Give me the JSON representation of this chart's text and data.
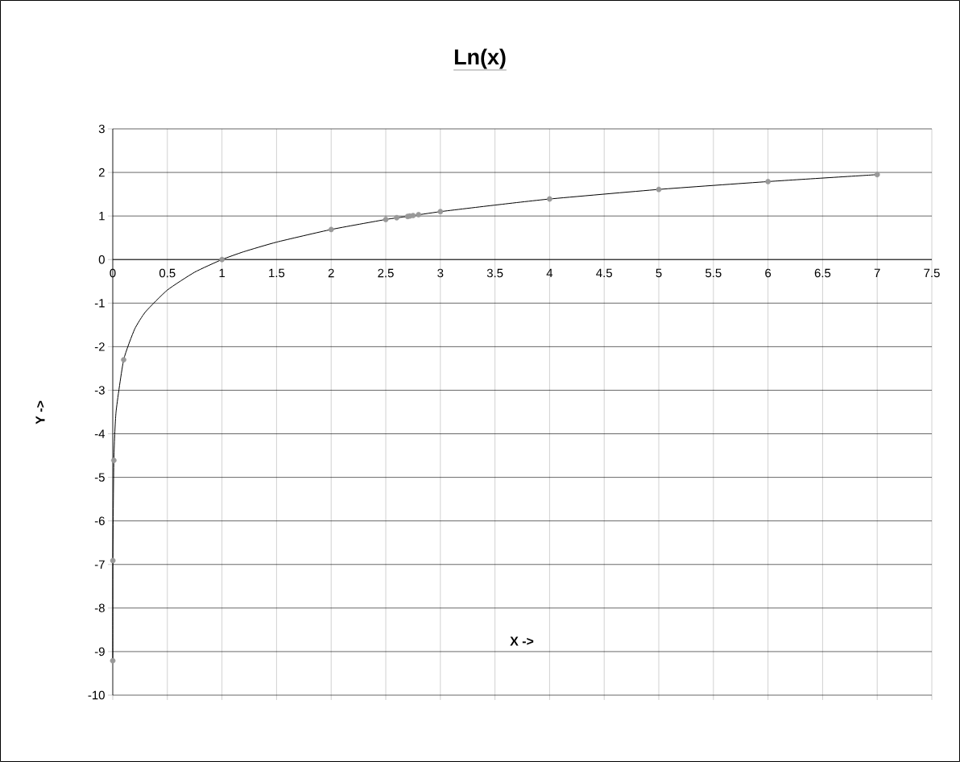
{
  "chart_data": {
    "type": "line",
    "title": "Ln(x)",
    "xlabel": "X ->",
    "ylabel": "Y ->",
    "xlim": [
      0,
      7.5
    ],
    "xticks": [
      0,
      0.5,
      1,
      1.5,
      2,
      2.5,
      3,
      3.5,
      4,
      4.5,
      5,
      5.5,
      6,
      6.5,
      7,
      7.5
    ],
    "ylim": [
      -10,
      3
    ],
    "yticks": [
      -10,
      -9,
      -8,
      -7,
      -6,
      -5,
      -4,
      -3,
      -2,
      -1,
      0,
      1,
      2,
      3
    ],
    "grid": true,
    "series": [
      {
        "color": "#000000",
        "marker": "none",
        "x": [
          0.0001,
          0.001,
          0.01,
          0.03,
          0.1,
          0.2,
          0.3,
          0.5,
          0.75,
          1,
          1.2,
          1.5,
          2,
          2.5,
          2.7,
          3,
          3.5,
          4,
          5,
          6,
          7
        ],
        "values": [
          -9.21,
          -6.91,
          -4.61,
          -3.5,
          -2.3,
          -1.6,
          -1.2,
          -0.7,
          -0.29,
          0,
          0.18,
          0.4,
          0.69,
          0.92,
          0.99,
          1.1,
          1.25,
          1.39,
          1.61,
          1.79,
          1.95
        ]
      },
      {
        "type": "scatter",
        "color": "#999999",
        "marker": "circle",
        "x": [
          0.0001,
          0.001,
          0.01,
          0.1,
          1,
          2,
          2.5,
          2.6,
          2.7,
          2.72,
          2.75,
          2.8,
          3,
          4,
          5,
          6,
          7
        ],
        "values": [
          -9.21,
          -6.91,
          -4.61,
          -2.3,
          0,
          0.69,
          0.92,
          0.96,
          0.99,
          1,
          1.01,
          1.03,
          1.1,
          1.39,
          1.61,
          1.79,
          1.95
        ]
      }
    ]
  }
}
